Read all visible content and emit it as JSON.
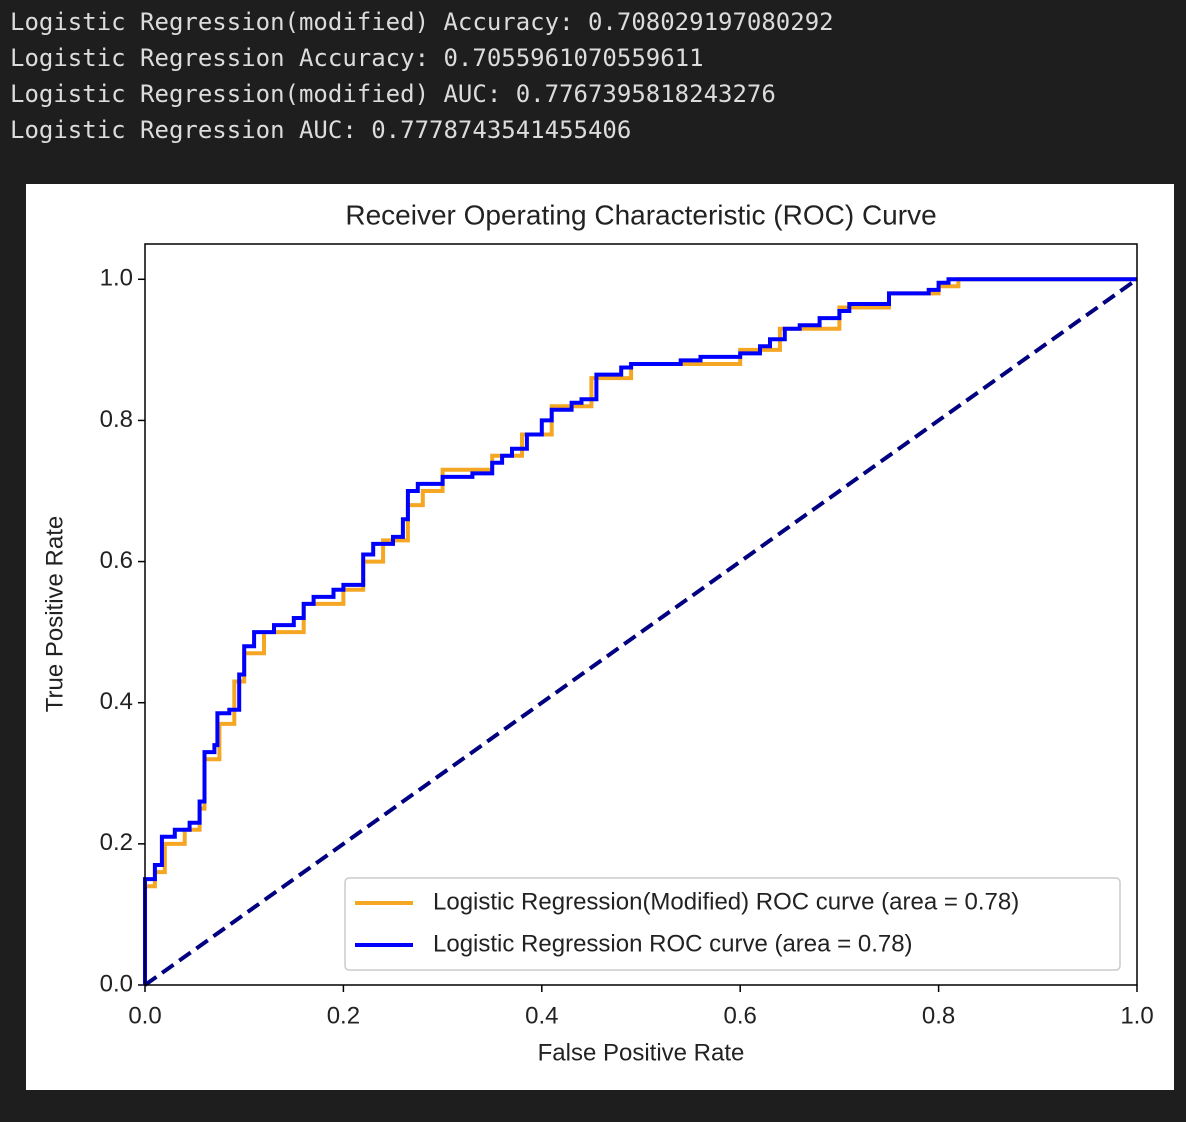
{
  "console": [
    "Logistic Regression(modified) Accuracy: 0.708029197080292",
    "Logistic Regression Accuracy: 0.7055961070559611",
    "Logistic Regression(modified) AUC: 0.7767395818243276",
    "Logistic Regression AUC: 0.7778743541455406"
  ],
  "chart_data": {
    "type": "line",
    "title": "Receiver Operating Characteristic (ROC) Curve",
    "xlabel": "False Positive Rate",
    "ylabel": "True Positive Rate",
    "xlim": [
      0,
      1
    ],
    "ylim": [
      0,
      1.05
    ],
    "xticks": [
      {
        "value": 0,
        "label": "0.0"
      },
      0.2,
      0.4,
      0.6,
      0.8,
      {
        "value": 1,
        "label": "1.0"
      }
    ],
    "yticks": [
      {
        "value": 0,
        "label": "0.0"
      },
      0.2,
      0.4,
      0.6,
      0.8,
      {
        "value": 1,
        "label": "1.0"
      }
    ],
    "legend": "lower right",
    "series": [
      {
        "name": "Logistic Regression(Modified) ROC curve (area = 0.78)",
        "color": "#f5a623",
        "x": [
          0,
          0,
          0.01,
          0.01,
          0.02,
          0.02,
          0.04,
          0.04,
          0.055,
          0.055,
          0.06,
          0.06,
          0.075,
          0.075,
          0.09,
          0.09,
          0.1,
          0.1,
          0.12,
          0.12,
          0.16,
          0.16,
          0.2,
          0.2,
          0.22,
          0.22,
          0.24,
          0.24,
          0.265,
          0.265,
          0.28,
          0.28,
          0.3,
          0.3,
          0.35,
          0.35,
          0.38,
          0.38,
          0.41,
          0.41,
          0.45,
          0.45,
          0.49,
          0.49,
          0.6,
          0.6,
          0.64,
          0.64,
          0.7,
          0.7,
          0.75,
          0.75,
          0.8,
          0.8,
          0.82,
          0.82,
          1
        ],
        "values": [
          0,
          0.14,
          0.14,
          0.16,
          0.16,
          0.2,
          0.2,
          0.22,
          0.22,
          0.25,
          0.25,
          0.32,
          0.32,
          0.37,
          0.37,
          0.43,
          0.43,
          0.47,
          0.47,
          0.5,
          0.5,
          0.54,
          0.54,
          0.56,
          0.56,
          0.6,
          0.6,
          0.63,
          0.63,
          0.68,
          0.68,
          0.7,
          0.7,
          0.73,
          0.73,
          0.75,
          0.75,
          0.78,
          0.78,
          0.82,
          0.82,
          0.86,
          0.86,
          0.88,
          0.88,
          0.9,
          0.9,
          0.93,
          0.93,
          0.96,
          0.96,
          0.98,
          0.98,
          0.99,
          0.99,
          1,
          1
        ]
      },
      {
        "name": "Logistic Regression ROC curve (area = 0.78)",
        "color": "#0000ff",
        "x": [
          0,
          0,
          0.01,
          0.01,
          0.017,
          0.017,
          0.03,
          0.03,
          0.045,
          0.045,
          0.055,
          0.055,
          0.06,
          0.06,
          0.07,
          0.07,
          0.073,
          0.073,
          0.085,
          0.085,
          0.095,
          0.095,
          0.1,
          0.1,
          0.11,
          0.11,
          0.13,
          0.13,
          0.15,
          0.15,
          0.16,
          0.16,
          0.17,
          0.17,
          0.19,
          0.19,
          0.2,
          0.2,
          0.22,
          0.22,
          0.23,
          0.23,
          0.25,
          0.25,
          0.26,
          0.26,
          0.265,
          0.265,
          0.275,
          0.275,
          0.3,
          0.3,
          0.33,
          0.33,
          0.35,
          0.35,
          0.36,
          0.36,
          0.37,
          0.37,
          0.385,
          0.385,
          0.4,
          0.4,
          0.41,
          0.41,
          0.43,
          0.43,
          0.44,
          0.44,
          0.455,
          0.455,
          0.48,
          0.48,
          0.49,
          0.49,
          0.54,
          0.54,
          0.56,
          0.56,
          0.6,
          0.6,
          0.62,
          0.62,
          0.63,
          0.63,
          0.645,
          0.645,
          0.66,
          0.66,
          0.68,
          0.68,
          0.7,
          0.7,
          0.71,
          0.71,
          0.75,
          0.75,
          0.79,
          0.79,
          0.8,
          0.8,
          0.81,
          0.81,
          1
        ],
        "values": [
          0,
          0.15,
          0.15,
          0.17,
          0.17,
          0.21,
          0.21,
          0.22,
          0.22,
          0.23,
          0.23,
          0.26,
          0.26,
          0.33,
          0.33,
          0.34,
          0.34,
          0.385,
          0.385,
          0.39,
          0.39,
          0.44,
          0.44,
          0.48,
          0.48,
          0.5,
          0.5,
          0.51,
          0.51,
          0.52,
          0.52,
          0.54,
          0.54,
          0.55,
          0.55,
          0.56,
          0.56,
          0.567,
          0.567,
          0.61,
          0.61,
          0.625,
          0.625,
          0.635,
          0.635,
          0.66,
          0.66,
          0.7,
          0.7,
          0.71,
          0.71,
          0.72,
          0.72,
          0.725,
          0.725,
          0.74,
          0.74,
          0.75,
          0.75,
          0.76,
          0.76,
          0.78,
          0.78,
          0.8,
          0.8,
          0.815,
          0.815,
          0.825,
          0.825,
          0.83,
          0.83,
          0.865,
          0.865,
          0.875,
          0.875,
          0.88,
          0.88,
          0.885,
          0.885,
          0.89,
          0.89,
          0.895,
          0.895,
          0.905,
          0.905,
          0.915,
          0.915,
          0.93,
          0.93,
          0.935,
          0.935,
          0.945,
          0.945,
          0.955,
          0.955,
          0.965,
          0.965,
          0.98,
          0.98,
          0.985,
          0.985,
          0.995,
          0.995,
          1,
          1
        ]
      },
      {
        "color": "#000080",
        "dash": true,
        "x": [
          0,
          1
        ],
        "values": [
          0,
          1
        ]
      }
    ]
  }
}
